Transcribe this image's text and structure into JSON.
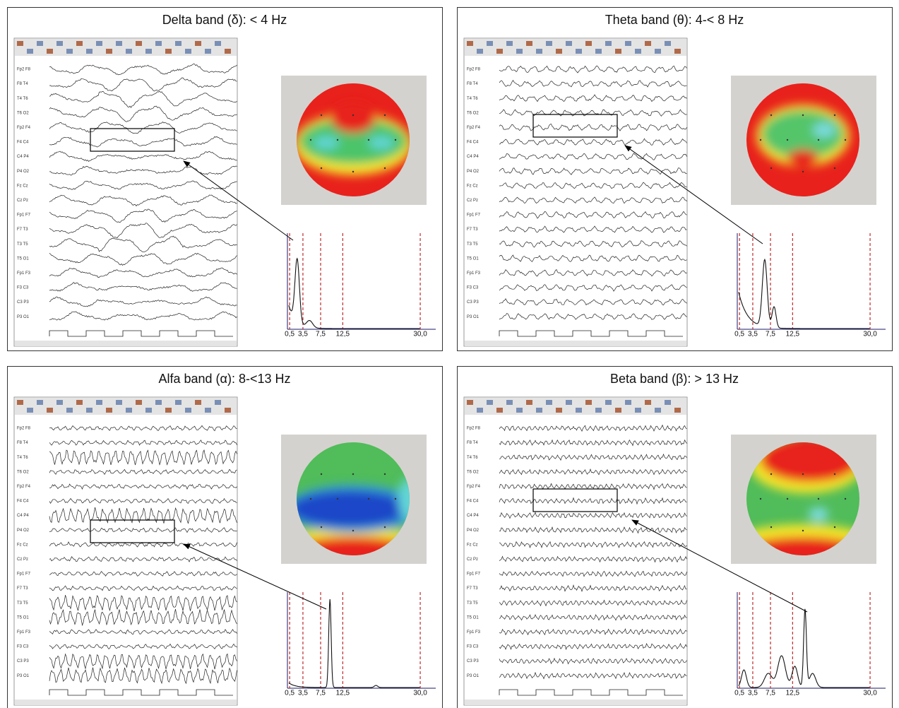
{
  "panels": [
    {
      "title": "Delta band (δ): < 4 Hz"
    },
    {
      "title": "Theta band (θ): 4-< 8 Hz"
    },
    {
      "title": "Alfa band (α): 8-<13 Hz"
    },
    {
      "title": "Beta band (β): > 13 Hz"
    }
  ],
  "channels": [
    "Fp2 F8",
    "F8 T4",
    "T4 T6",
    "T6 O2",
    "Fp2 F4",
    "F4 C4",
    "C4 P4",
    "P4 O2",
    "Fz Cz",
    "Cz Pz",
    "Fp1 F7",
    "F7 T3",
    "T3 T5",
    "T5 O1",
    "Fp1 F3",
    "F3 C3",
    "C3 P3",
    "P3 O1"
  ],
  "spectrum_xlim": [
    0,
    33.5
  ],
  "spectrum_ticks": [
    {
      "value": 0.5,
      "label": "0,5"
    },
    {
      "value": 3.5,
      "label": "3,5"
    },
    {
      "value": 7.5,
      "label": "7,5"
    },
    {
      "value": 12.5,
      "label": "12,5"
    },
    {
      "value": 30,
      "label": "30,0"
    }
  ]
}
